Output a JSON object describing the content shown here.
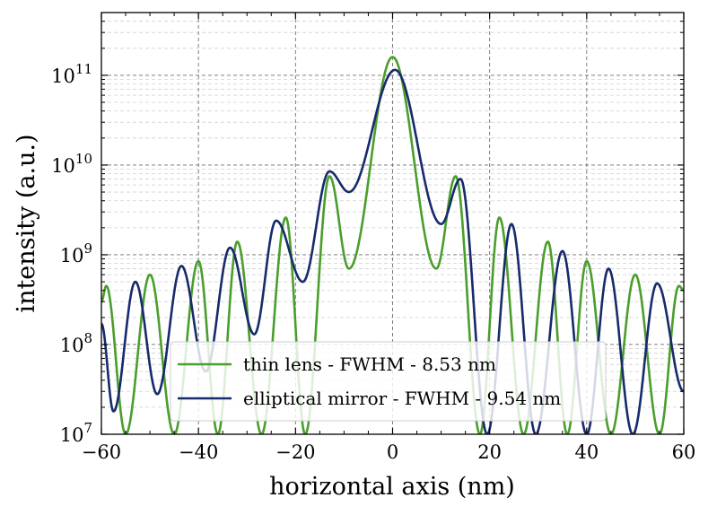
{
  "chart_data": {
    "type": "line",
    "title": "",
    "xlabel": "horizontal axis (nm)",
    "ylabel": "intensity (a.u.)",
    "xlim": [
      -60,
      60
    ],
    "ylim": [
      10000000.0,
      500000000000.0
    ],
    "yscale": "log",
    "grid": true,
    "legend_position": "bottom-center",
    "x_ticks": [
      -60,
      -40,
      -20,
      0,
      20,
      40,
      60
    ],
    "x_tick_labels": [
      "−60",
      "−40",
      "−20",
      "0",
      "20",
      "40",
      "60"
    ],
    "y_ticks": [
      10000000.0,
      100000000.0,
      1000000000.0,
      10000000000.0,
      100000000000.0
    ],
    "y_tick_labels": [
      {
        "base": "10",
        "exp": "7"
      },
      {
        "base": "10",
        "exp": "8"
      },
      {
        "base": "10",
        "exp": "9"
      },
      {
        "base": "10",
        "exp": "10"
      },
      {
        "base": "10",
        "exp": "11"
      }
    ],
    "series": [
      {
        "name": "thin lens - FWHM - 8.53 nm",
        "color": "#4a9e2c",
        "peak": 160000000000.0,
        "null_spacing_nm": 9.4,
        "center_nm": 0,
        "points": [
          [
            -60,
            300000000.0
          ],
          [
            -59,
            450000000.0
          ],
          [
            -55,
            10000000.0
          ],
          [
            -50,
            600000000.0
          ],
          [
            -45,
            10000000.0
          ],
          [
            -40,
            850000000.0
          ],
          [
            -36,
            10000000.0
          ],
          [
            -32,
            1400000000.0
          ],
          [
            -27,
            10000000.0
          ],
          [
            -22,
            2600000000.0
          ],
          [
            -18,
            10000000.0
          ],
          [
            -13,
            7500000000.0
          ],
          [
            -9,
            700000000.0
          ],
          [
            0,
            160000000000.0
          ],
          [
            9,
            700000000.0
          ],
          [
            13,
            7500000000.0
          ],
          [
            18,
            10000000.0
          ],
          [
            22,
            2600000000.0
          ],
          [
            27,
            10000000.0
          ],
          [
            32,
            1400000000.0
          ],
          [
            36,
            10000000.0
          ],
          [
            40,
            850000000.0
          ],
          [
            45,
            10000000.0
          ],
          [
            50,
            600000000.0
          ],
          [
            55,
            10000000.0
          ],
          [
            59,
            450000000.0
          ],
          [
            60,
            400000000.0
          ]
        ]
      },
      {
        "name": "elliptical mirror - FWHM - 9.54 nm",
        "color": "#172a6b",
        "peak": 115000000000.0,
        "null_spacing_nm": 9.7,
        "center_nm": 0.5,
        "points": [
          [
            -60,
            170000000.0
          ],
          [
            -57.5,
            18000000.0
          ],
          [
            -53,
            500000000.0
          ],
          [
            -48.5,
            28000000.0
          ],
          [
            -43.5,
            750000000.0
          ],
          [
            -38.5,
            50000000.0
          ],
          [
            -33.5,
            1200000000.0
          ],
          [
            -28.5,
            130000000.0
          ],
          [
            -24,
            2400000000.0
          ],
          [
            -18.5,
            500000000.0
          ],
          [
            -13,
            8500000000.0
          ],
          [
            -9,
            5000000000.0
          ],
          [
            0.5,
            115000000000.0
          ],
          [
            10,
            2200000000.0
          ],
          [
            14,
            7000000000.0
          ],
          [
            19.5,
            10000000.0
          ],
          [
            24.5,
            2200000000.0
          ],
          [
            29.5,
            10000000.0
          ],
          [
            35,
            1100000000.0
          ],
          [
            40,
            10000000.0
          ],
          [
            44.5,
            700000000.0
          ],
          [
            49.5,
            10000000.0
          ],
          [
            54.5,
            480000000.0
          ],
          [
            60,
            30000000.0
          ]
        ]
      }
    ]
  }
}
